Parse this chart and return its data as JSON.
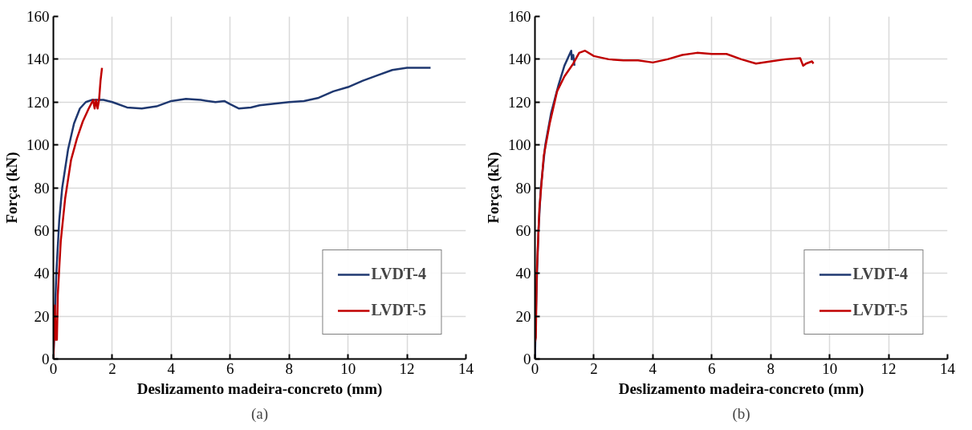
{
  "chart_data": [
    {
      "type": "line",
      "xlabel": "Deslizamento madeira-concreto (mm)",
      "ylabel": "Força (kN)",
      "annotations": [
        "(a)"
      ],
      "xlim": [
        0,
        14
      ],
      "xticks": [
        0,
        2,
        4,
        6,
        8,
        10,
        12,
        14
      ],
      "ylim": [
        0,
        160
      ],
      "yticks": [
        0,
        20,
        40,
        60,
        80,
        100,
        120,
        140,
        160
      ],
      "grid": true,
      "legend": "bottom right",
      "series": [
        {
          "name": "LVDT-4",
          "color": "#1f3870",
          "x": [
            0,
            0.05,
            0.1,
            0.2,
            0.3,
            0.5,
            0.7,
            0.9,
            1.1,
            1.3,
            1.7,
            2,
            2.5,
            3,
            3.5,
            4,
            4.5,
            5,
            5.5,
            5.8,
            6,
            6.3,
            6.7,
            7,
            8,
            8.5,
            9,
            9.5,
            10,
            10.5,
            11,
            11.5,
            12,
            12.8
          ],
          "values": [
            0,
            20,
            40,
            65,
            80,
            98,
            110,
            117,
            120,
            121,
            121,
            120,
            117.5,
            117,
            118,
            120.5,
            121.5,
            121,
            120,
            120.5,
            119,
            117,
            117.5,
            118.5,
            120,
            120.5,
            122,
            125,
            127,
            130,
            132.5,
            135,
            136,
            136
          ]
        },
        {
          "name": "LVDT-5",
          "color": "#c00000",
          "x": [
            0,
            0.05,
            0.08,
            0.12,
            0.15,
            0.25,
            0.4,
            0.6,
            0.8,
            1.0,
            1.2,
            1.35,
            1.4,
            1.45,
            1.5,
            1.55,
            1.6,
            1.65
          ],
          "values": [
            0,
            25,
            9,
            9,
            30,
            55,
            75,
            93,
            103,
            111,
            117,
            121,
            117,
            121,
            117,
            121,
            130,
            136
          ]
        }
      ]
    },
    {
      "type": "line",
      "xlabel": "Deslizamento madeira-concreto (mm)",
      "ylabel": "Força (kN)",
      "annotations": [
        "(b)"
      ],
      "xlim": [
        0,
        14
      ],
      "xticks": [
        0,
        2,
        4,
        6,
        8,
        10,
        12,
        14
      ],
      "ylim": [
        0,
        160
      ],
      "yticks": [
        0,
        20,
        40,
        60,
        80,
        100,
        120,
        140,
        160
      ],
      "grid": true,
      "legend": "bottom right",
      "series": [
        {
          "name": "LVDT-4",
          "color": "#1f3870",
          "x": [
            0,
            0.03,
            0.07,
            0.12,
            0.2,
            0.35,
            0.55,
            0.8,
            1.0,
            1.23,
            1.25,
            1.3,
            1.34
          ],
          "values": [
            0,
            20,
            40,
            60,
            80,
            100,
            115,
            128,
            137,
            144,
            140,
            142,
            137
          ]
        },
        {
          "name": "LVDT-5",
          "color": "#c00000",
          "x": [
            0,
            0.03,
            0.06,
            0.15,
            0.3,
            0.5,
            0.75,
            1.0,
            1.3,
            1.5,
            1.7,
            2,
            2.5,
            3,
            3.5,
            4,
            4.5,
            5,
            5.5,
            6,
            6.5,
            7,
            7.5,
            8,
            8.5,
            9,
            9.1,
            9.2,
            9.4,
            9.45
          ],
          "values": [
            8,
            10,
            40,
            70,
            95,
            110,
            125,
            132,
            138,
            143,
            144,
            141.5,
            140,
            139.5,
            139.5,
            138.5,
            140,
            142,
            143,
            142.5,
            142.5,
            140,
            138,
            139,
            140,
            140.5,
            137,
            138,
            139,
            138
          ]
        }
      ]
    }
  ]
}
